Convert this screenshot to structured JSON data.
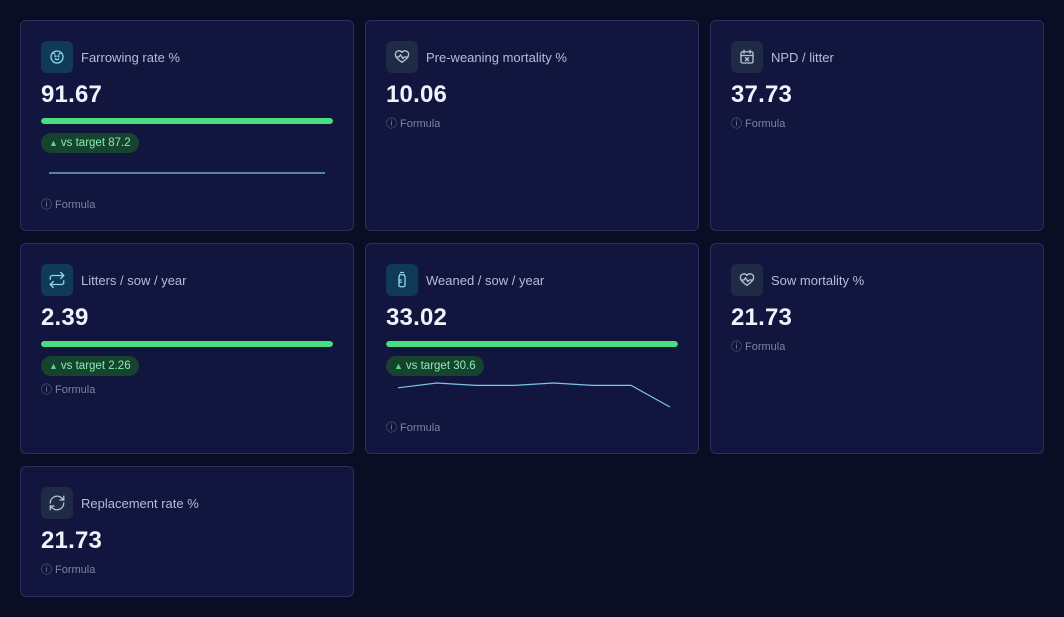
{
  "cards": [
    {
      "label": "Farrowing rate %",
      "value": "91.67",
      "progress": 1.0,
      "badge": "vs target 87.2",
      "formula": "Formula",
      "icon": "piglet-icon",
      "sparkline": [
        91.67,
        91.67,
        91.67,
        91.67,
        91.67,
        91.67,
        91.67
      ]
    },
    {
      "label": "Pre-weaning mortality %",
      "value": "10.06",
      "formula": "Formula",
      "icon": "heart-pulse-icon"
    },
    {
      "label": "NPD / litter",
      "value": "37.73",
      "formula": "Formula",
      "icon": "calendar-x-icon"
    },
    {
      "label": "Litters / sow / year",
      "value": "2.39",
      "progress": 1.0,
      "badge": "vs target 2.26",
      "formula": "Formula",
      "icon": "repeat-icon"
    },
    {
      "label": "Weaned / sow / year",
      "value": "33.02",
      "progress": 1.0,
      "badge": "vs target 30.6",
      "formula": "Formula",
      "icon": "baby-bottle-icon",
      "sparkline": [
        33.1,
        33.3,
        33.2,
        33.2,
        33.3,
        33.2,
        33.2,
        32.3
      ]
    },
    {
      "label": "Sow mortality %",
      "value": "21.73",
      "formula": "Formula",
      "icon": "heart-pulse-icon"
    },
    {
      "label": "Replacement rate %",
      "value": "21.73",
      "formula": "Formula",
      "icon": "refresh-icon"
    }
  ],
  "colors": {
    "accent_green": "#4ade80",
    "sparkline": "#7cc4e8",
    "card_bg": "#12163f",
    "page_bg": "#0a0d24"
  }
}
